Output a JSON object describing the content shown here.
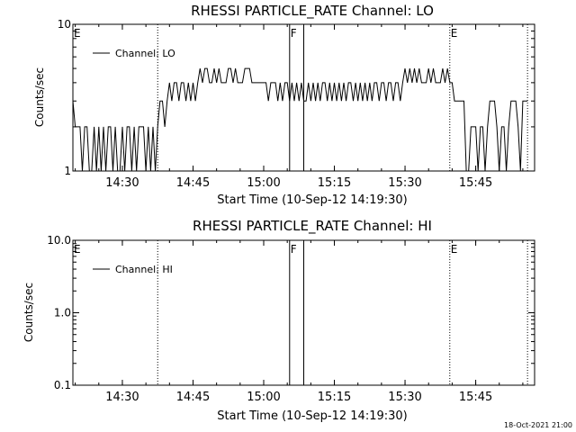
{
  "chart_data": [
    {
      "type": "line",
      "title": "RHESSI PARTICLE_RATE Channel: LO",
      "xlabel": "Start Time (10-Sep-12 14:19:30)",
      "ylabel": "Counts/sec",
      "yscale": "log",
      "ylim": [
        1,
        10
      ],
      "xlim": [
        "14:19:30",
        "15:57:30"
      ],
      "y_tick_labels": [
        "1",
        "10"
      ],
      "x_tick_labels": [
        "14:30",
        "14:45",
        "15:00",
        "15:15",
        "15:30",
        "15:45"
      ],
      "legend": {
        "position": "top-left",
        "entries": [
          "Channel: LO"
        ]
      },
      "markers": [
        {
          "label": "E",
          "style": "dotted",
          "times": [
            "14:19:30"
          ]
        },
        {
          "label": "",
          "style": "dotted",
          "times": [
            "14:37:30"
          ]
        },
        {
          "label": "F",
          "style": "solid",
          "times": [
            "15:05:30",
            "15:08:30"
          ]
        },
        {
          "label": "E",
          "style": "dotted",
          "times": [
            "15:39:30"
          ]
        },
        {
          "label": "",
          "style": "dotted",
          "times": [
            "15:56:00"
          ]
        }
      ],
      "series": [
        {
          "name": "Channel: LO",
          "x": [
            "14:19:30",
            "14:20:00",
            "14:20:30",
            "14:21:00",
            "14:21:30",
            "14:22:00",
            "14:22:30",
            "14:23:00",
            "14:23:30",
            "14:24:00",
            "14:24:30",
            "14:25:00",
            "14:25:30",
            "14:26:00",
            "14:26:30",
            "14:27:00",
            "14:27:30",
            "14:28:00",
            "14:28:30",
            "14:29:00",
            "14:29:30",
            "14:30:00",
            "14:30:30",
            "14:31:00",
            "14:31:30",
            "14:32:00",
            "14:32:30",
            "14:33:00",
            "14:33:30",
            "14:34:00",
            "14:34:30",
            "14:35:00",
            "14:35:30",
            "14:36:00",
            "14:36:30",
            "14:37:00",
            "14:37:30",
            "14:38:00",
            "14:38:30",
            "14:39:00",
            "14:39:30",
            "14:40:00",
            "14:40:30",
            "14:41:00",
            "14:41:30",
            "14:42:00",
            "14:42:30",
            "14:43:00",
            "14:43:30",
            "14:44:00",
            "14:44:30",
            "14:45:00",
            "14:45:30",
            "14:46:00",
            "14:46:30",
            "14:47:00",
            "14:47:30",
            "14:48:00",
            "14:48:30",
            "14:49:00",
            "14:49:30",
            "14:50:00",
            "14:50:30",
            "14:51:00",
            "14:51:30",
            "14:52:00",
            "14:52:30",
            "14:53:00",
            "14:53:30",
            "14:54:00",
            "14:54:30",
            "14:55:00",
            "14:55:30",
            "14:56:00",
            "14:56:30",
            "14:57:00",
            "14:57:30",
            "14:58:00",
            "14:58:30",
            "14:59:00",
            "14:59:30",
            "15:00:00",
            "15:00:30",
            "15:01:00",
            "15:01:30",
            "15:02:00",
            "15:02:30",
            "15:03:00",
            "15:03:30",
            "15:04:00",
            "15:04:30",
            "15:05:00",
            "15:05:30",
            "15:06:00",
            "15:06:30",
            "15:07:00",
            "15:07:30",
            "15:08:00",
            "15:08:30",
            "15:09:00",
            "15:09:30",
            "15:10:00",
            "15:10:30",
            "15:11:00",
            "15:11:30",
            "15:12:00",
            "15:12:30",
            "15:13:00",
            "15:13:30",
            "15:14:00",
            "15:14:30",
            "15:15:00",
            "15:15:30",
            "15:16:00",
            "15:16:30",
            "15:17:00",
            "15:17:30",
            "15:18:00",
            "15:18:30",
            "15:19:00",
            "15:19:30",
            "15:20:00",
            "15:20:30",
            "15:21:00",
            "15:21:30",
            "15:22:00",
            "15:22:30",
            "15:23:00",
            "15:23:30",
            "15:24:00",
            "15:24:30",
            "15:25:00",
            "15:25:30",
            "15:26:00",
            "15:26:30",
            "15:27:00",
            "15:27:30",
            "15:28:00",
            "15:28:30",
            "15:29:00",
            "15:29:30",
            "15:30:00",
            "15:30:30",
            "15:31:00",
            "15:31:30",
            "15:32:00",
            "15:32:30",
            "15:33:00",
            "15:33:30",
            "15:34:00",
            "15:34:30",
            "15:35:00",
            "15:35:30",
            "15:36:00",
            "15:36:30",
            "15:37:00",
            "15:37:30",
            "15:38:00",
            "15:38:30",
            "15:39:00",
            "15:39:30",
            "15:40:00",
            "15:40:30",
            "15:41:00",
            "15:41:30",
            "15:42:00",
            "15:42:30",
            "15:43:00",
            "15:43:30",
            "15:44:00",
            "15:44:30",
            "15:45:00",
            "15:45:30",
            "15:46:00",
            "15:46:30",
            "15:47:00",
            "15:47:30",
            "15:48:00",
            "15:48:30",
            "15:49:00",
            "15:49:30",
            "15:50:00",
            "15:50:30",
            "15:51:00",
            "15:51:30",
            "15:52:00",
            "15:52:30",
            "15:53:00",
            "15:53:30",
            "15:54:00",
            "15:54:30",
            "15:55:00",
            "15:55:30",
            "15:56:00"
          ],
          "values": [
            3,
            2,
            2,
            2,
            1,
            2,
            2,
            1,
            1,
            2,
            1,
            2,
            1,
            2,
            1,
            2,
            2,
            1,
            2,
            1,
            1,
            2,
            1,
            2,
            2,
            1,
            2,
            1,
            2,
            2,
            2,
            1,
            2,
            1,
            2,
            1,
            2,
            3,
            3,
            2,
            3,
            4,
            3,
            4,
            4,
            3,
            4,
            4,
            3,
            4,
            3,
            4,
            3,
            4,
            5,
            4,
            5,
            5,
            4,
            4,
            5,
            4,
            5,
            4,
            4,
            4,
            5,
            5,
            4,
            5,
            4,
            4,
            4,
            5,
            5,
            5,
            4,
            4,
            4,
            4,
            4,
            4,
            4,
            3,
            4,
            4,
            4,
            3,
            4,
            3,
            4,
            4,
            3,
            4,
            3,
            4,
            3,
            4,
            3,
            3,
            4,
            3,
            4,
            3,
            4,
            3,
            4,
            4,
            3,
            4,
            3,
            4,
            3,
            4,
            3,
            4,
            3,
            4,
            4,
            3,
            4,
            3,
            4,
            3,
            4,
            3,
            4,
            3,
            4,
            4,
            3,
            4,
            4,
            3,
            4,
            4,
            3,
            4,
            4,
            3,
            4,
            5,
            4,
            5,
            4,
            5,
            4,
            5,
            4,
            4,
            4,
            5,
            4,
            5,
            4,
            4,
            4,
            5,
            4,
            5,
            4,
            4,
            3,
            3,
            3,
            3,
            3,
            1,
            1,
            2,
            2,
            2,
            1,
            2,
            2,
            1,
            2,
            3,
            3,
            3,
            2,
            1,
            2,
            2,
            1,
            2,
            3,
            3,
            3,
            2,
            1,
            3,
            3,
            3
          ]
        }
      ]
    },
    {
      "type": "line",
      "title": "RHESSI PARTICLE_RATE Channel: HI",
      "xlabel": "Start Time (10-Sep-12 14:19:30)",
      "ylabel": "Counts/sec",
      "yscale": "log",
      "ylim": [
        0.1,
        10
      ],
      "xlim": [
        "14:19:30",
        "15:57:30"
      ],
      "y_tick_labels": [
        "0.1",
        "1.0",
        "10.0"
      ],
      "x_tick_labels": [
        "14:30",
        "14:45",
        "15:00",
        "15:15",
        "15:30",
        "15:45"
      ],
      "legend": {
        "position": "top-left",
        "entries": [
          "Channel: HI"
        ]
      },
      "markers": [
        {
          "label": "E",
          "style": "dotted",
          "times": [
            "14:19:30"
          ]
        },
        {
          "label": "",
          "style": "dotted",
          "times": [
            "14:37:30"
          ]
        },
        {
          "label": "F",
          "style": "solid",
          "times": [
            "15:05:30",
            "15:08:30"
          ]
        },
        {
          "label": "E",
          "style": "dotted",
          "times": [
            "15:39:30"
          ]
        },
        {
          "label": "",
          "style": "dotted",
          "times": [
            "15:56:00"
          ]
        }
      ],
      "series": [
        {
          "name": "Channel: HI",
          "x": [],
          "values": []
        }
      ]
    }
  ],
  "footer": {
    "timestamp": "18-Oct-2021 21:00"
  }
}
